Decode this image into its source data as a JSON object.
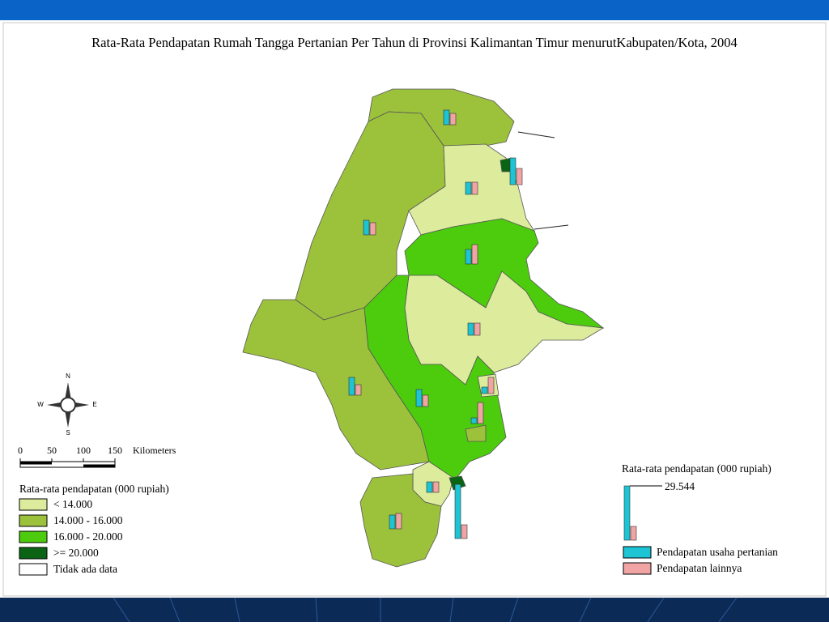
{
  "title": "Rata-Rata Pendapatan Rumah Tangga Pertanian Per Tahun di Provinsi Kalimantan Timur menurutKabupaten/Kota, 2004",
  "compass": {
    "n": "N",
    "w": "W",
    "e": "E",
    "s": "S"
  },
  "scale_bar": {
    "ticks": [
      0,
      50,
      100,
      150
    ],
    "unit": "Kilometers"
  },
  "choropleth_legend": {
    "title": "Rata-rata pendapatan (000 rupiah)",
    "classes": [
      {
        "label": "< 14.000",
        "color": "#dcec9c"
      },
      {
        "label": "14.000 - 16.000",
        "color": "#9cc23c"
      },
      {
        "label": "16.000 - 20.000",
        "color": "#4ccc0c"
      },
      {
        "label": ">= 20.000",
        "color": "#0a6414"
      },
      {
        "label": "Tidak ada data",
        "color": "#ffffff"
      }
    ]
  },
  "bar_legend": {
    "title": "Rata-rata pendapatan (000 rupiah)",
    "reference": {
      "value": 29544,
      "label": "29.544"
    },
    "reference_other": 7500,
    "series": [
      {
        "name": "Pendapatan usaha pertanian",
        "color": "#1cc4d4"
      },
      {
        "name": "Pendapatan lainnya",
        "color": "#f0a4a4"
      }
    ]
  },
  "districts": [
    {
      "farm": 7940,
      "other": 6170
    },
    {
      "farm": 14550,
      "other": 8820
    },
    {
      "farm": 6620,
      "other": 6620
    },
    {
      "farm": 7940,
      "other": 6620
    },
    {
      "farm": 7940,
      "other": 10580
    },
    {
      "farm": 6620,
      "other": 6620
    },
    {
      "farm": 9700,
      "other": 5730
    },
    {
      "farm": 9260,
      "other": 6170
    },
    {
      "farm": 3530,
      "other": 8820
    },
    {
      "farm": 3090,
      "other": 11470
    },
    {
      "farm": 5730,
      "other": 5730
    },
    {
      "farm": 29500,
      "other": 7500
    },
    {
      "farm": 7500,
      "other": 8380
    }
  ]
}
